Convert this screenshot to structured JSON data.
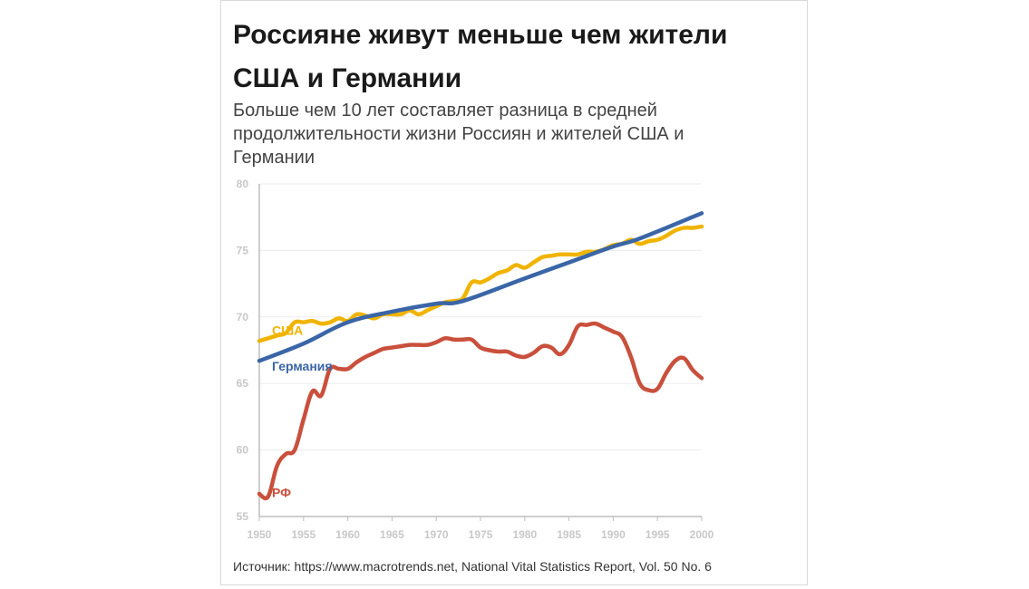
{
  "header": {
    "title": "Россияне живут меньше чем жители США и Германии",
    "subtitle": "Больше чем 10 лет составляет разница в средней продолжительности жизни Россиян и жителей США и Германии"
  },
  "footer": {
    "source": "Источник: https://www.macrotrends.net, National Vital Statistics Report, Vol. 50 No. 6"
  },
  "chart_data": {
    "type": "line",
    "title": "Россияне живут меньше чем жители США и Германии",
    "xlabel": "",
    "ylabel": "",
    "xlim": [
      1950,
      2000
    ],
    "ylim": [
      55,
      80
    ],
    "x_ticks": [
      1950,
      1955,
      1960,
      1965,
      1970,
      1975,
      1980,
      1985,
      1990,
      1995,
      2000
    ],
    "y_ticks": [
      55,
      60,
      65,
      70,
      75,
      80
    ],
    "grid": true,
    "series": [
      {
        "name": "США",
        "color": "#f0b400",
        "x": [
          1950,
          1951,
          1952,
          1953,
          1954,
          1955,
          1956,
          1957,
          1958,
          1959,
          1960,
          1961,
          1962,
          1963,
          1964,
          1965,
          1966,
          1967,
          1968,
          1969,
          1970,
          1971,
          1972,
          1973,
          1974,
          1975,
          1976,
          1977,
          1978,
          1979,
          1980,
          1981,
          1982,
          1983,
          1984,
          1985,
          1986,
          1987,
          1988,
          1989,
          1990,
          1991,
          1992,
          1993,
          1994,
          1995,
          1996,
          1997,
          1998,
          1999,
          2000
        ],
        "values": [
          68.2,
          68.4,
          68.6,
          68.8,
          69.6,
          69.6,
          69.7,
          69.5,
          69.6,
          69.9,
          69.7,
          70.2,
          70.1,
          69.9,
          70.2,
          70.2,
          70.2,
          70.5,
          70.2,
          70.5,
          70.8,
          71.1,
          71.2,
          71.4,
          72.6,
          72.6,
          72.9,
          73.3,
          73.5,
          73.9,
          73.7,
          74.1,
          74.5,
          74.6,
          74.7,
          74.7,
          74.7,
          74.9,
          74.9,
          75.1,
          75.4,
          75.5,
          75.8,
          75.5,
          75.7,
          75.8,
          76.1,
          76.5,
          76.7,
          76.7,
          76.8
        ]
      },
      {
        "name": "Германия",
        "color": "#3a66a7",
        "x": [
          1950,
          1955,
          1960,
          1965,
          1970,
          1973,
          1980,
          1985,
          1990,
          1993,
          2000
        ],
        "values": [
          66.7,
          68.0,
          69.6,
          70.4,
          71.0,
          71.2,
          72.9,
          74.1,
          75.3,
          75.9,
          77.8
        ]
      },
      {
        "name": "РФ",
        "color": "#c9503c",
        "x": [
          1950,
          1951,
          1952,
          1953,
          1954,
          1955,
          1956,
          1957,
          1958,
          1959,
          1960,
          1961,
          1962,
          1963,
          1964,
          1965,
          1966,
          1967,
          1968,
          1969,
          1970,
          1971,
          1972,
          1973,
          1974,
          1975,
          1976,
          1977,
          1978,
          1979,
          1980,
          1981,
          1982,
          1983,
          1984,
          1985,
          1986,
          1987,
          1988,
          1989,
          1990,
          1991,
          1992,
          1993,
          1994,
          1995,
          1996,
          1997,
          1998,
          1999,
          2000
        ],
        "values": [
          56.7,
          56.5,
          58.8,
          59.7,
          60.0,
          62.3,
          64.4,
          64.1,
          66.1,
          66.1,
          66.1,
          66.6,
          67.0,
          67.3,
          67.6,
          67.7,
          67.8,
          67.9,
          67.9,
          67.9,
          68.1,
          68.4,
          68.3,
          68.3,
          68.3,
          67.7,
          67.5,
          67.4,
          67.4,
          67.1,
          67.0,
          67.3,
          67.8,
          67.7,
          67.2,
          67.9,
          69.3,
          69.4,
          69.5,
          69.2,
          68.9,
          68.5,
          67.0,
          65.0,
          64.5,
          64.6,
          65.8,
          66.7,
          66.9,
          66.0,
          65.4
        ]
      }
    ],
    "labels": [
      {
        "text": "США",
        "series": "США"
      },
      {
        "text": "Германия",
        "series": "Германия"
      },
      {
        "text": "РФ",
        "series": "РФ"
      }
    ]
  }
}
